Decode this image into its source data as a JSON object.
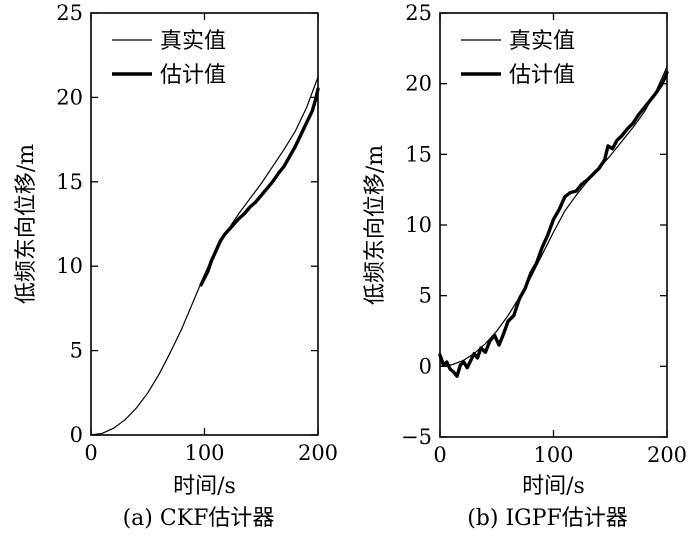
{
  "chart_data": [
    {
      "type": "line",
      "caption": "(a) CKF估计器",
      "xlabel": "时间/s",
      "ylabel": "低频东向位移/m",
      "xlim": [
        0,
        200
      ],
      "ylim": [
        0,
        25
      ],
      "xticks": [
        0,
        100,
        200
      ],
      "yticks": [
        0,
        5,
        10,
        15,
        20,
        25
      ],
      "legend_position": "top-left",
      "series": [
        {
          "name": "真实值",
          "style": "thin",
          "x": [
            0,
            10,
            20,
            30,
            40,
            50,
            60,
            70,
            80,
            90,
            100,
            110,
            120,
            130,
            140,
            150,
            160,
            170,
            180,
            190,
            200
          ],
          "y": [
            0.0,
            0.1,
            0.4,
            0.9,
            1.6,
            2.5,
            3.6,
            4.9,
            6.3,
            7.9,
            9.5,
            11.0,
            12.1,
            13.1,
            14.0,
            14.9,
            15.9,
            16.9,
            18.0,
            19.4,
            21.2
          ]
        },
        {
          "name": "估计值",
          "style": "thick",
          "x": [
            97,
            100,
            103,
            106,
            110,
            114,
            118,
            122,
            126,
            130,
            135,
            140,
            145,
            150,
            155,
            160,
            165,
            170,
            175,
            180,
            185,
            190,
            195,
            198,
            200
          ],
          "y": [
            8.9,
            9.3,
            9.7,
            10.3,
            10.9,
            11.5,
            11.9,
            12.2,
            12.5,
            12.8,
            13.1,
            13.5,
            13.8,
            14.2,
            14.6,
            15.0,
            15.5,
            15.9,
            16.5,
            17.1,
            17.8,
            18.5,
            19.2,
            19.9,
            20.5
          ]
        }
      ]
    },
    {
      "type": "line",
      "caption": "(b) IGPF估计器",
      "xlabel": "时间/s",
      "ylabel": "低频东向位移/m",
      "xlim": [
        0,
        200
      ],
      "ylim": [
        -5,
        25
      ],
      "xticks": [
        0,
        100,
        200
      ],
      "yticks": [
        -5,
        0,
        5,
        10,
        15,
        20,
        25
      ],
      "legend_position": "top-left",
      "series": [
        {
          "name": "真实值",
          "style": "thin",
          "x": [
            0,
            10,
            20,
            30,
            40,
            50,
            60,
            70,
            80,
            90,
            100,
            110,
            120,
            130,
            140,
            150,
            160,
            170,
            180,
            190,
            200
          ],
          "y": [
            0.0,
            0.1,
            0.4,
            0.9,
            1.6,
            2.5,
            3.6,
            4.9,
            6.3,
            7.9,
            9.5,
            11.0,
            12.1,
            13.1,
            14.0,
            14.9,
            15.9,
            16.9,
            18.0,
            19.4,
            21.2
          ]
        },
        {
          "name": "估计值",
          "style": "thick",
          "x": [
            0,
            3,
            6,
            9,
            12,
            15,
            18,
            21,
            24,
            27,
            30,
            33,
            36,
            40,
            44,
            48,
            52,
            56,
            60,
            65,
            70,
            75,
            80,
            85,
            90,
            95,
            100,
            105,
            110,
            115,
            120,
            125,
            130,
            135,
            140,
            145,
            148,
            152,
            156,
            160,
            165,
            170,
            175,
            180,
            185,
            190,
            195,
            198,
            200
          ],
          "y": [
            0.8,
            0.1,
            0.3,
            -0.2,
            -0.4,
            -0.7,
            0.1,
            0.3,
            -0.1,
            0.4,
            0.9,
            0.6,
            1.3,
            1.0,
            1.8,
            2.2,
            1.5,
            2.3,
            3.2,
            3.6,
            4.8,
            5.5,
            6.6,
            7.3,
            8.4,
            9.3,
            10.4,
            11.1,
            12.0,
            12.3,
            12.4,
            12.9,
            13.2,
            13.6,
            14.0,
            14.6,
            15.6,
            15.4,
            16.0,
            16.3,
            16.8,
            17.2,
            17.8,
            18.3,
            18.8,
            19.3,
            19.9,
            20.4,
            20.8
          ]
        }
      ]
    }
  ]
}
